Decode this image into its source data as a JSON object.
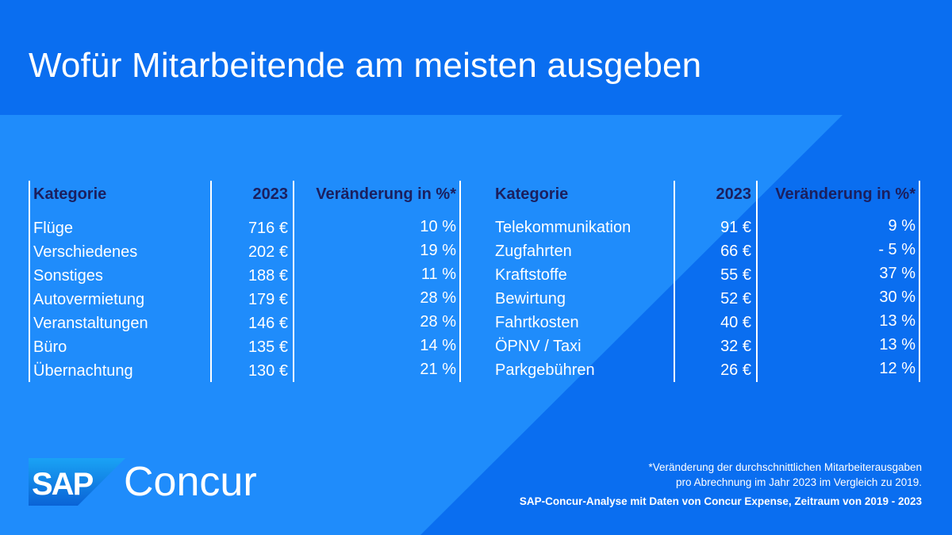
{
  "title": "Wofür Mitarbeitende am meisten ausgeben",
  "colors": {
    "dark_blue": "#0a6ef0",
    "mid_blue": "#1f8cfb",
    "header_text": "#1b1f5e",
    "logo_gradient_top": "#1aa3f5",
    "logo_gradient_bottom": "#0a63d6"
  },
  "table_left": {
    "headers": {
      "category": "Kategorie",
      "year": "2023",
      "change": "Veränderung in %*"
    },
    "rows": [
      {
        "category": "Flüge",
        "amount": "716 €",
        "change": "10 %"
      },
      {
        "category": "Verschiedenes",
        "amount": "202 €",
        "change": "19 %"
      },
      {
        "category": "Sonstiges",
        "amount": "188 €",
        "change": "11 %"
      },
      {
        "category": "Autovermietung",
        "amount": "179 €",
        "change": "28 %"
      },
      {
        "category": "Veranstaltungen",
        "amount": "146 €",
        "change": "28 %"
      },
      {
        "category": "Büro",
        "amount": "135 €",
        "change": "14 %"
      },
      {
        "category": "Übernachtung",
        "amount": "130 €",
        "change": "21 %"
      }
    ]
  },
  "table_right": {
    "headers": {
      "category": "Kategorie",
      "year": "2023",
      "change": "Veränderung in %*"
    },
    "rows": [
      {
        "category": "Telekommunikation",
        "amount": "91 €",
        "change": "9 %"
      },
      {
        "category": "Zugfahrten",
        "amount": "66 €",
        "change": "- 5 %"
      },
      {
        "category": "Kraftstoffe",
        "amount": "55 €",
        "change": "37 %"
      },
      {
        "category": "Bewirtung",
        "amount": "52 €",
        "change": "30 %"
      },
      {
        "category": "Fahrtkosten",
        "amount": "40 €",
        "change": "13 %"
      },
      {
        "category": "ÖPNV / Taxi",
        "amount": "32 €",
        "change": "13 %"
      },
      {
        "category": "Parkgebühren",
        "amount": "26 €",
        "change": "12 %"
      }
    ]
  },
  "logo": {
    "sap": "SAP",
    "concur": "Concur"
  },
  "footnote": {
    "line1": "*Veränderung der durchschnittlichen Mitarbeiterausgaben",
    "line2": "pro Abrechnung im Jahr 2023 im Vergleich zu 2019."
  },
  "source": "SAP-Concur-Analyse mit Daten von Concur Expense, Zeitraum von 2019 - 2023"
}
